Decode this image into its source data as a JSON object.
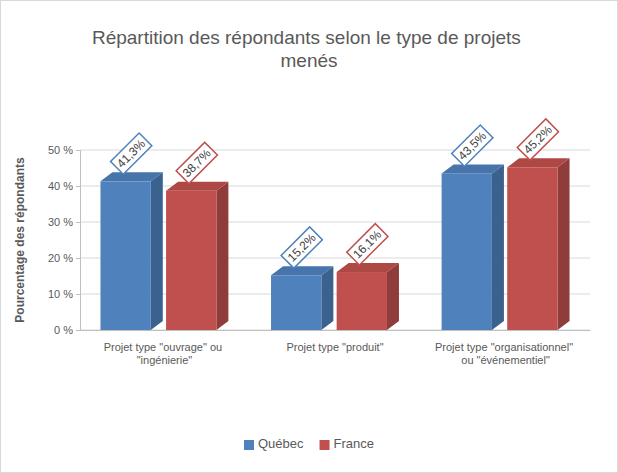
{
  "chart_data": {
    "type": "bar",
    "title": "Répartition des répondants selon le type de projets menés",
    "y_label": "Pourcentage des répondants",
    "categories": [
      "Projet type \"ouvrage\" ou \"ingénierie\"",
      "Projet type \"produit\"",
      "Projet type \"organisationnel\" ou \"événementiel\""
    ],
    "series": [
      {
        "name": "Québec",
        "color": "#4f81bd",
        "values": [
          41.3,
          15.2,
          43.5
        ],
        "value_labels": [
          "41,3%",
          "15,2%",
          "43,5%"
        ]
      },
      {
        "name": "France",
        "color": "#c0504d",
        "values": [
          38.7,
          16.1,
          45.2
        ],
        "value_labels": [
          "38,7%",
          "16,1%",
          "45,2%"
        ]
      }
    ],
    "ylim": [
      0,
      50
    ],
    "yticks": [
      {
        "value": 0,
        "label": "0 %"
      },
      {
        "value": 10,
        "label": "10 %"
      },
      {
        "value": 20,
        "label": "20 %"
      },
      {
        "value": 30,
        "label": "30 %"
      },
      {
        "value": 40,
        "label": "40 %"
      },
      {
        "value": 50,
        "label": "50 %"
      }
    ],
    "grid": true,
    "legend": "bottom",
    "data_labels": true
  }
}
